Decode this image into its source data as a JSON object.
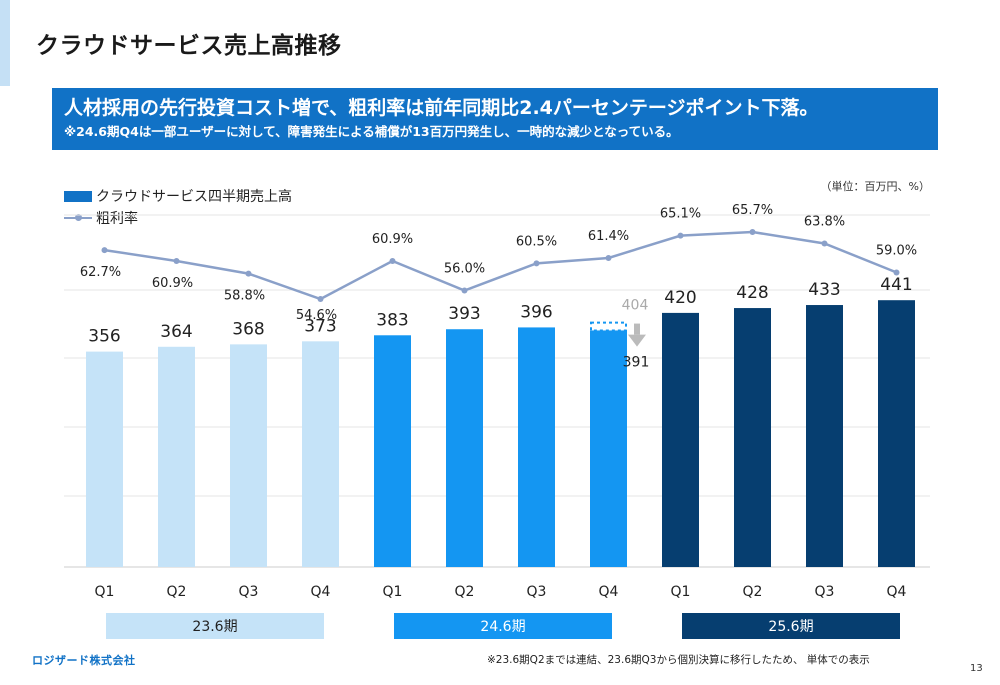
{
  "page": {
    "title": "クラウドサービス売上高推移",
    "banner_line1": "人材採用の先行投資コスト増で、粗利率は前年同期比2.4パーセンテージポイント下落。",
    "banner_line2": "※24.6期Q4は一部ユーザーに対して、障害発生による補償が13百万円発生し、一時的な減少となっている。",
    "unit_note": "（単位：百万円、%）",
    "footnote": "※23.6期Q2までは連結、23.6期Q3から個別決算に移行したため、 単体での表示",
    "logo": "ロジザード株式会社",
    "page_number": "13"
  },
  "colors": {
    "fy23": "#c5e3f8",
    "fy24": "#1496f2",
    "fy25": "#063e70",
    "line": "#8aa0c9",
    "banner": "#1172c6",
    "ghost": "#bbbbbb"
  },
  "chart_data": {
    "type": "bar",
    "categories": [
      "Q1",
      "Q2",
      "Q3",
      "Q4",
      "Q1",
      "Q2",
      "Q3",
      "Q4",
      "Q1",
      "Q2",
      "Q3",
      "Q4"
    ],
    "period_groups": [
      {
        "label": "23.6期",
        "quarters": 4
      },
      {
        "label": "24.6期",
        "quarters": 4
      },
      {
        "label": "25.6期",
        "quarters": 4
      }
    ],
    "series": [
      {
        "name": "クラウドサービス四半期売上高",
        "type": "bar",
        "values": [
          356,
          364,
          368,
          373,
          383,
          393,
          396,
          391,
          420,
          428,
          433,
          441
        ]
      },
      {
        "name": "粗利率",
        "type": "line",
        "unit": "%",
        "values": [
          62.7,
          60.9,
          58.8,
          54.6,
          60.9,
          56.0,
          60.5,
          61.4,
          65.1,
          65.7,
          63.8,
          59.0
        ],
        "labels": [
          "62.7%",
          "60.9%",
          "58.8%",
          "54.6%",
          "60.9%",
          "56.0%",
          "60.5%",
          "61.4%",
          "65.1%",
          "65.7%",
          "63.8%",
          "59.0%"
        ]
      }
    ],
    "annotation": {
      "category_index": 7,
      "before_compensation": 404,
      "reported": 391
    },
    "ylim": [
      0,
      450
    ],
    "grid": true
  }
}
